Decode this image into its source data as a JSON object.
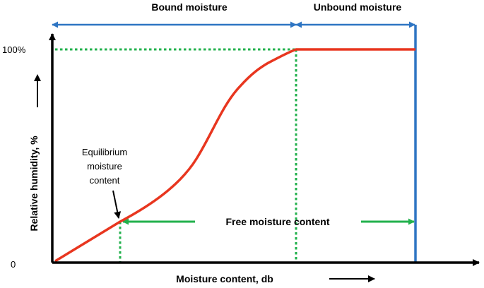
{
  "diagram": {
    "labels": {
      "bound_moisture": "Bound moisture",
      "unbound_moisture": "Unbound moisture",
      "y_100": "100%",
      "y_0": "0",
      "y_axis": "Relative humidity, %",
      "x_axis": "Moisture content, db",
      "emc_line1": "Equilibrium",
      "emc_line2": "moisture",
      "emc_line3": "content",
      "free_moisture": "Free moisture content"
    },
    "colors": {
      "curve": "#e8361f",
      "region_arrows": "#2e75c3",
      "dotted_guides": "#22b14c",
      "free_arrow": "#22b14c",
      "axes": "#000000"
    }
  }
}
